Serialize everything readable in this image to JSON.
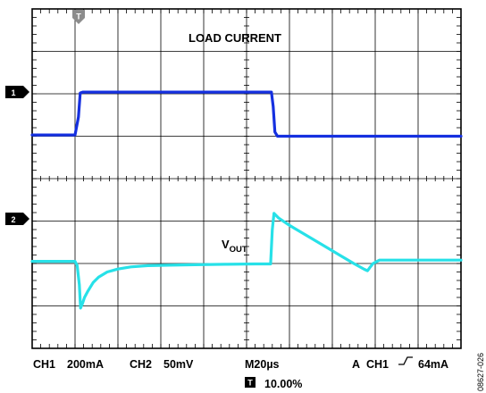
{
  "chart_data": {
    "type": "line",
    "grid": true,
    "x_divisions": 10,
    "y_divisions": 8,
    "trigger_marker": "T",
    "annotations": {
      "load_current": "LOAD CURRENT",
      "vout_main": "V",
      "vout_sub": "OUT"
    },
    "channel_markers": [
      "1",
      "2"
    ],
    "series": [
      {
        "name": "LOAD CURRENT",
        "channel": "1",
        "color": "#1530e0",
        "unit": "div",
        "x": [
          0,
          1.0,
          1.08,
          1.12,
          1.18,
          5.58,
          5.62,
          5.66,
          5.72,
          10
        ],
        "y": [
          5.03,
          5.03,
          5.45,
          6.02,
          6.04,
          6.04,
          5.7,
          5.1,
          5.0,
          5.0
        ]
      },
      {
        "name": "VOUT",
        "channel": "2",
        "color": "#27e1e8",
        "unit": "div",
        "x": [
          0,
          1.0,
          1.05,
          1.1,
          1.13,
          1.17,
          1.22,
          1.3,
          1.42,
          1.55,
          1.75,
          2.0,
          2.3,
          2.7,
          3.2,
          3.8,
          4.5,
          5.2,
          5.56,
          5.6,
          5.64,
          5.75,
          6.0,
          6.5,
          7.0,
          7.5,
          7.75,
          7.82,
          7.87,
          7.95,
          8.1,
          10
        ],
        "y": [
          2.05,
          2.05,
          1.95,
          1.5,
          0.95,
          1.05,
          1.2,
          1.35,
          1.55,
          1.68,
          1.8,
          1.87,
          1.92,
          1.95,
          1.96,
          1.97,
          1.98,
          1.99,
          1.99,
          2.8,
          3.18,
          3.07,
          2.9,
          2.6,
          2.3,
          2.0,
          1.86,
          1.83,
          1.9,
          2.0,
          2.08,
          2.08
        ]
      }
    ],
    "readout": {
      "ch1_label": "CH1",
      "ch1_scale": "200mA",
      "ch2_label": "CH2",
      "ch2_scale": "50mV",
      "timebase": "M20µs",
      "trigger_mode": "A",
      "trigger_channel": "CH1",
      "trigger_level": "64mA",
      "trigger_position": "10.00%"
    },
    "figure_id": "08627-026"
  }
}
